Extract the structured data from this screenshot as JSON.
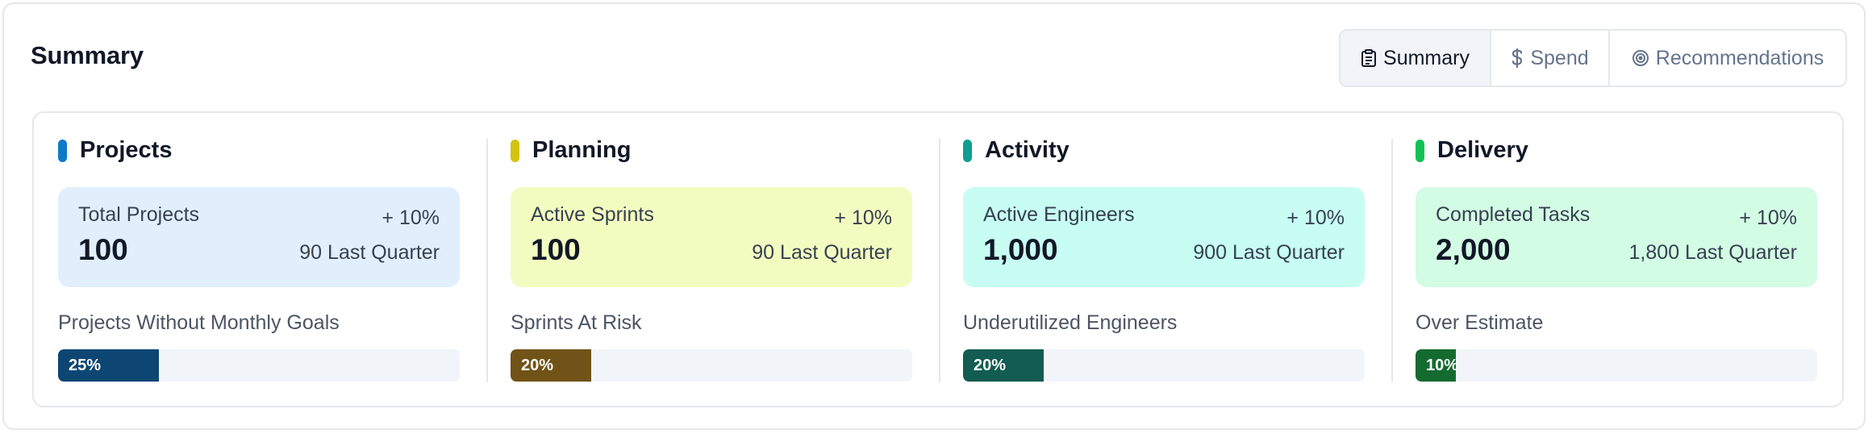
{
  "header": {
    "title": "Summary"
  },
  "tabs": [
    {
      "label": "Summary",
      "icon": "clipboard-icon",
      "active": true
    },
    {
      "label": "Spend",
      "icon": "dollar-icon",
      "active": false
    },
    {
      "label": "Recommendations",
      "icon": "target-icon",
      "active": false
    }
  ],
  "sections": [
    {
      "title": "Projects",
      "accent": "#0f7ac8",
      "card_bg": "#e1effd",
      "metric": {
        "label": "Total Projects",
        "change": "+ 10%",
        "value": "100",
        "previous": "90 Last Quarter"
      },
      "sub_label": "Projects Without Monthly Goals",
      "progress": {
        "percent": 25,
        "label": "25%",
        "color": "#0d4673"
      }
    },
    {
      "title": "Planning",
      "accent": "#d2c30f",
      "card_bg": "#f3fcc0",
      "metric": {
        "label": "Active Sprints",
        "change": "+ 10%",
        "value": "100",
        "previous": "90 Last Quarter"
      },
      "sub_label": "Sprints At Risk",
      "progress": {
        "percent": 20,
        "label": "20%",
        "color": "#715317"
      }
    },
    {
      "title": "Activity",
      "accent": "#0f9e8f",
      "card_bg": "#c7fdf2",
      "metric": {
        "label": "Active Engineers",
        "change": "+ 10%",
        "value": "1,000",
        "previous": "900 Last Quarter"
      },
      "sub_label": "Underutilized Engineers",
      "progress": {
        "percent": 20,
        "label": "20%",
        "color": "#125c52"
      }
    },
    {
      "title": "Delivery",
      "accent": "#11c155",
      "card_bg": "#d3fce4",
      "metric": {
        "label": "Completed Tasks",
        "change": "+ 10%",
        "value": "2,000",
        "previous": "1,800 Last Quarter"
      },
      "sub_label": "Over Estimate",
      "progress": {
        "percent": 10,
        "label": "10%",
        "color": "#146b30"
      }
    }
  ]
}
